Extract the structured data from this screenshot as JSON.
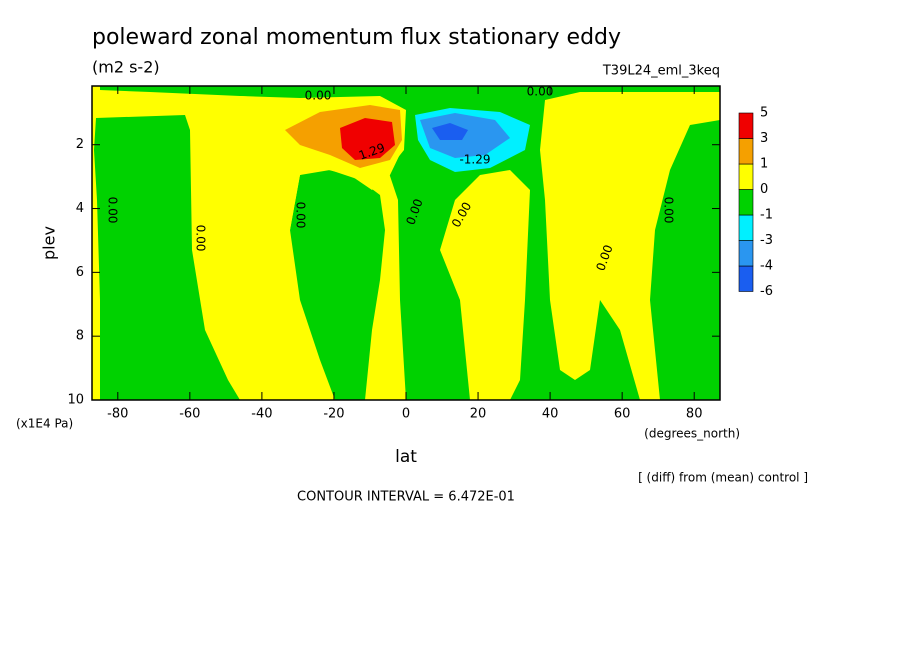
{
  "chart_data": {
    "type": "contour",
    "title": "poleward zonal momentum flux stationary eddy",
    "subtitle": "(m2 s-2)",
    "dataset": "T39L24_eml_3keq",
    "x_label": "lat",
    "x_units": "(degrees_north)",
    "y_label": "plev",
    "y_units": "(x1E4 Pa)",
    "note": "[ (diff) from (mean) control ]",
    "contour_interval": "CONTOUR INTERVAL = 6.472E-01",
    "xlim": [
      -87.16,
      87.16
    ],
    "xticks": [
      -80,
      -60,
      -40,
      -20,
      0,
      20,
      40,
      60,
      80
    ],
    "ylim": [
      0.16,
      10
    ],
    "yticks": [
      2,
      4,
      6,
      8,
      10
    ],
    "levels": [
      -6,
      -4,
      -3,
      -1,
      0,
      1,
      3,
      5
    ],
    "colors": [
      "#1a5ef0",
      "#2a96f0",
      "#00f0ff",
      "#00d200",
      "#ffff00",
      "#f5a000",
      "#f00000"
    ],
    "contour_labels": [
      {
        "value": 0,
        "label": "0.00"
      },
      {
        "value": 0,
        "label": "0.00"
      },
      {
        "value": 0,
        "label": "0.00"
      },
      {
        "value": 0,
        "label": "0.00"
      },
      {
        "value": 0,
        "label": "0.00"
      },
      {
        "value": 0,
        "label": "0.00"
      },
      {
        "value": 0,
        "label": "0.00"
      },
      {
        "value": 0,
        "label": "0.00"
      },
      {
        "value": 0,
        "label": "0.00"
      },
      {
        "value": 1.29,
        "label": "1.29"
      },
      {
        "value": -1.29,
        "label": "-1.29"
      }
    ]
  }
}
